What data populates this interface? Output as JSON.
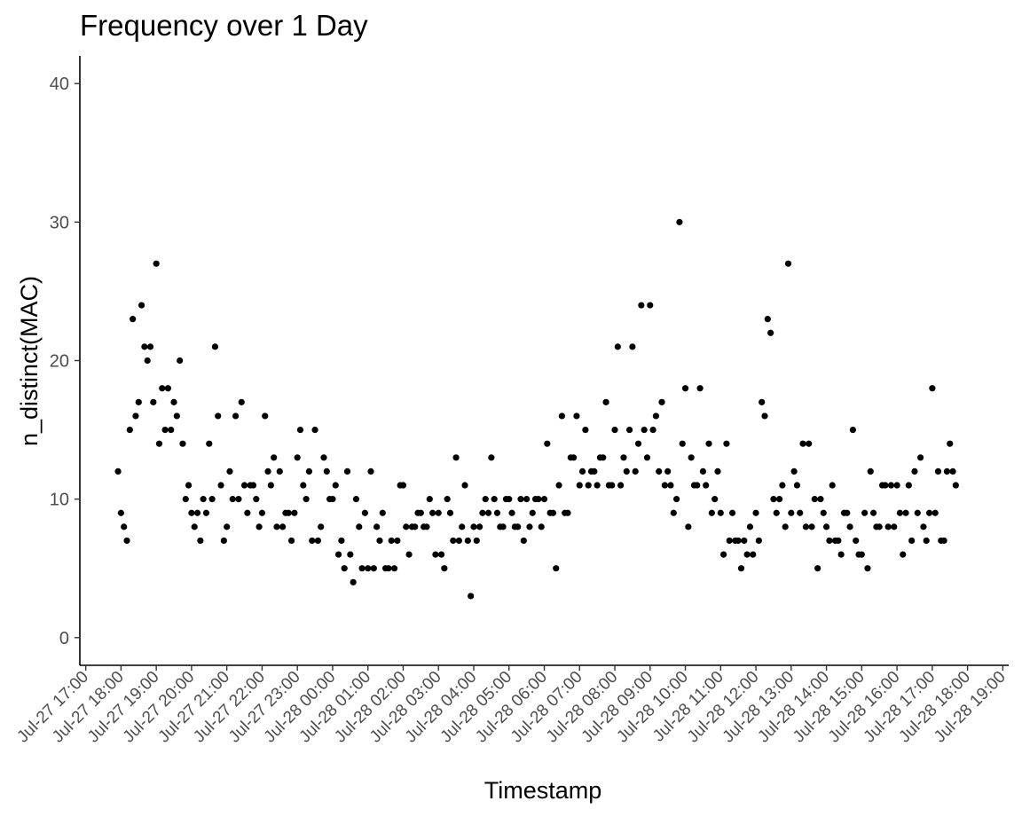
{
  "chart_data": {
    "type": "scatter",
    "title": "Frequency over 1 Day",
    "xlabel": "Timestamp",
    "ylabel": "n_distinct(MAC)",
    "ylim": [
      -2,
      42
    ],
    "xlim": [
      "2019-07-27T16:50",
      "2019-07-28T19:10"
    ],
    "y_ticks": [
      0,
      10,
      20,
      30,
      40
    ],
    "x_tick_labels": [
      "Jul-27 17:00",
      "Jul-27 18:00",
      "Jul-27 19:00",
      "Jul-27 20:00",
      "Jul-27 21:00",
      "Jul-27 22:00",
      "Jul-27 23:00",
      "Jul-28 00:00",
      "Jul-28 01:00",
      "Jul-28 02:00",
      "Jul-28 03:00",
      "Jul-28 04:00",
      "Jul-28 05:00",
      "Jul-28 06:00",
      "Jul-28 07:00",
      "Jul-28 08:00",
      "Jul-28 09:00",
      "Jul-28 10:00",
      "Jul-28 11:00",
      "Jul-28 12:00",
      "Jul-28 13:00",
      "Jul-28 14:00",
      "Jul-28 15:00",
      "Jul-28 16:00",
      "Jul-28 17:00",
      "Jul-28 18:00",
      "Jul-28 19:00"
    ],
    "grid": false,
    "point_color": "#000000",
    "points": [
      {
        "x": "2019-07-27T17:55",
        "y": 12
      },
      {
        "x": "2019-07-27T18:00",
        "y": 9
      },
      {
        "x": "2019-07-27T18:05",
        "y": 8
      },
      {
        "x": "2019-07-27T18:10",
        "y": 7
      },
      {
        "x": "2019-07-27T18:15",
        "y": 15
      },
      {
        "x": "2019-07-27T18:20",
        "y": 23
      },
      {
        "x": "2019-07-27T18:25",
        "y": 16
      },
      {
        "x": "2019-07-27T18:30",
        "y": 17
      },
      {
        "x": "2019-07-27T18:35",
        "y": 24
      },
      {
        "x": "2019-07-27T18:40",
        "y": 21
      },
      {
        "x": "2019-07-27T18:45",
        "y": 20
      },
      {
        "x": "2019-07-27T18:50",
        "y": 21
      },
      {
        "x": "2019-07-27T18:55",
        "y": 17
      },
      {
        "x": "2019-07-27T19:00",
        "y": 27
      },
      {
        "x": "2019-07-27T19:05",
        "y": 14
      },
      {
        "x": "2019-07-27T19:10",
        "y": 18
      },
      {
        "x": "2019-07-27T19:15",
        "y": 15
      },
      {
        "x": "2019-07-27T19:20",
        "y": 18
      },
      {
        "x": "2019-07-27T19:25",
        "y": 15
      },
      {
        "x": "2019-07-27T19:30",
        "y": 17
      },
      {
        "x": "2019-07-27T19:35",
        "y": 16
      },
      {
        "x": "2019-07-27T19:40",
        "y": 20
      },
      {
        "x": "2019-07-27T19:45",
        "y": 14
      },
      {
        "x": "2019-07-27T19:50",
        "y": 10
      },
      {
        "x": "2019-07-27T19:55",
        "y": 11
      },
      {
        "x": "2019-07-27T20:00",
        "y": 9
      },
      {
        "x": "2019-07-27T20:05",
        "y": 8
      },
      {
        "x": "2019-07-27T20:10",
        "y": 9
      },
      {
        "x": "2019-07-27T20:15",
        "y": 7
      },
      {
        "x": "2019-07-27T20:20",
        "y": 10
      },
      {
        "x": "2019-07-27T20:25",
        "y": 9
      },
      {
        "x": "2019-07-27T20:30",
        "y": 14
      },
      {
        "x": "2019-07-27T20:35",
        "y": 10
      },
      {
        "x": "2019-07-27T20:40",
        "y": 21
      },
      {
        "x": "2019-07-27T20:45",
        "y": 16
      },
      {
        "x": "2019-07-27T20:50",
        "y": 11
      },
      {
        "x": "2019-07-27T20:55",
        "y": 7
      },
      {
        "x": "2019-07-27T21:00",
        "y": 8
      },
      {
        "x": "2019-07-27T21:05",
        "y": 12
      },
      {
        "x": "2019-07-27T21:10",
        "y": 10
      },
      {
        "x": "2019-07-27T21:15",
        "y": 16
      },
      {
        "x": "2019-07-27T21:20",
        "y": 10
      },
      {
        "x": "2019-07-27T21:25",
        "y": 17
      },
      {
        "x": "2019-07-27T21:30",
        "y": 11
      },
      {
        "x": "2019-07-27T21:35",
        "y": 9
      },
      {
        "x": "2019-07-27T21:40",
        "y": 11
      },
      {
        "x": "2019-07-27T21:45",
        "y": 11
      },
      {
        "x": "2019-07-27T21:50",
        "y": 10
      },
      {
        "x": "2019-07-27T21:55",
        "y": 8
      },
      {
        "x": "2019-07-27T22:00",
        "y": 9
      },
      {
        "x": "2019-07-27T22:05",
        "y": 16
      },
      {
        "x": "2019-07-27T22:10",
        "y": 12
      },
      {
        "x": "2019-07-27T22:15",
        "y": 11
      },
      {
        "x": "2019-07-27T22:20",
        "y": 13
      },
      {
        "x": "2019-07-27T22:25",
        "y": 8
      },
      {
        "x": "2019-07-27T22:30",
        "y": 12
      },
      {
        "x": "2019-07-27T22:35",
        "y": 8
      },
      {
        "x": "2019-07-27T22:40",
        "y": 9
      },
      {
        "x": "2019-07-27T22:45",
        "y": 9
      },
      {
        "x": "2019-07-27T22:50",
        "y": 7
      },
      {
        "x": "2019-07-27T22:55",
        "y": 9
      },
      {
        "x": "2019-07-27T23:00",
        "y": 13
      },
      {
        "x": "2019-07-27T23:05",
        "y": 15
      },
      {
        "x": "2019-07-27T23:10",
        "y": 11
      },
      {
        "x": "2019-07-27T23:15",
        "y": 10
      },
      {
        "x": "2019-07-27T23:20",
        "y": 12
      },
      {
        "x": "2019-07-27T23:25",
        "y": 7
      },
      {
        "x": "2019-07-27T23:30",
        "y": 15
      },
      {
        "x": "2019-07-27T23:35",
        "y": 7
      },
      {
        "x": "2019-07-27T23:40",
        "y": 8
      },
      {
        "x": "2019-07-27T23:45",
        "y": 13
      },
      {
        "x": "2019-07-27T23:50",
        "y": 12
      },
      {
        "x": "2019-07-27T23:55",
        "y": 10
      },
      {
        "x": "2019-07-28T00:00",
        "y": 10
      },
      {
        "x": "2019-07-28T00:05",
        "y": 11
      },
      {
        "x": "2019-07-28T00:10",
        "y": 6
      },
      {
        "x": "2019-07-28T00:15",
        "y": 7
      },
      {
        "x": "2019-07-28T00:20",
        "y": 5
      },
      {
        "x": "2019-07-28T00:25",
        "y": 12
      },
      {
        "x": "2019-07-28T00:30",
        "y": 6
      },
      {
        "x": "2019-07-28T00:35",
        "y": 4
      },
      {
        "x": "2019-07-28T00:40",
        "y": 10
      },
      {
        "x": "2019-07-28T00:45",
        "y": 8
      },
      {
        "x": "2019-07-28T00:50",
        "y": 5
      },
      {
        "x": "2019-07-28T00:55",
        "y": 9
      },
      {
        "x": "2019-07-28T01:00",
        "y": 5
      },
      {
        "x": "2019-07-28T01:05",
        "y": 12
      },
      {
        "x": "2019-07-28T01:10",
        "y": 5
      },
      {
        "x": "2019-07-28T01:15",
        "y": 8
      },
      {
        "x": "2019-07-28T01:20",
        "y": 7
      },
      {
        "x": "2019-07-28T01:25",
        "y": 9
      },
      {
        "x": "2019-07-28T01:30",
        "y": 5
      },
      {
        "x": "2019-07-28T01:35",
        "y": 5
      },
      {
        "x": "2019-07-28T01:40",
        "y": 7
      },
      {
        "x": "2019-07-28T01:45",
        "y": 5
      },
      {
        "x": "2019-07-28T01:50",
        "y": 7
      },
      {
        "x": "2019-07-28T01:55",
        "y": 11
      },
      {
        "x": "2019-07-28T02:00",
        "y": 11
      },
      {
        "x": "2019-07-28T02:05",
        "y": 8
      },
      {
        "x": "2019-07-28T02:10",
        "y": 6
      },
      {
        "x": "2019-07-28T02:15",
        "y": 8
      },
      {
        "x": "2019-07-28T02:20",
        "y": 8
      },
      {
        "x": "2019-07-28T02:25",
        "y": 9
      },
      {
        "x": "2019-07-28T02:30",
        "y": 9
      },
      {
        "x": "2019-07-28T02:35",
        "y": 8
      },
      {
        "x": "2019-07-28T02:40",
        "y": 8
      },
      {
        "x": "2019-07-28T02:45",
        "y": 10
      },
      {
        "x": "2019-07-28T02:50",
        "y": 9
      },
      {
        "x": "2019-07-28T02:55",
        "y": 6
      },
      {
        "x": "2019-07-28T03:00",
        "y": 9
      },
      {
        "x": "2019-07-28T03:05",
        "y": 6
      },
      {
        "x": "2019-07-28T03:10",
        "y": 5
      },
      {
        "x": "2019-07-28T03:15",
        "y": 10
      },
      {
        "x": "2019-07-28T03:20",
        "y": 9
      },
      {
        "x": "2019-07-28T03:25",
        "y": 7
      },
      {
        "x": "2019-07-28T03:30",
        "y": 13
      },
      {
        "x": "2019-07-28T03:35",
        "y": 7
      },
      {
        "x": "2019-07-28T03:40",
        "y": 8
      },
      {
        "x": "2019-07-28T03:45",
        "y": 11
      },
      {
        "x": "2019-07-28T03:50",
        "y": 7
      },
      {
        "x": "2019-07-28T03:55",
        "y": 3
      },
      {
        "x": "2019-07-28T04:00",
        "y": 8
      },
      {
        "x": "2019-07-28T04:05",
        "y": 7
      },
      {
        "x": "2019-07-28T04:10",
        "y": 8
      },
      {
        "x": "2019-07-28T04:15",
        "y": 9
      },
      {
        "x": "2019-07-28T04:20",
        "y": 10
      },
      {
        "x": "2019-07-28T04:25",
        "y": 9
      },
      {
        "x": "2019-07-28T04:30",
        "y": 13
      },
      {
        "x": "2019-07-28T04:35",
        "y": 10
      },
      {
        "x": "2019-07-28T04:40",
        "y": 9
      },
      {
        "x": "2019-07-28T04:45",
        "y": 8
      },
      {
        "x": "2019-07-28T04:50",
        "y": 8
      },
      {
        "x": "2019-07-28T04:55",
        "y": 10
      },
      {
        "x": "2019-07-28T05:00",
        "y": 10
      },
      {
        "x": "2019-07-28T05:05",
        "y": 9
      },
      {
        "x": "2019-07-28T05:10",
        "y": 8
      },
      {
        "x": "2019-07-28T05:15",
        "y": 8
      },
      {
        "x": "2019-07-28T05:20",
        "y": 10
      },
      {
        "x": "2019-07-28T05:25",
        "y": 7
      },
      {
        "x": "2019-07-28T05:30",
        "y": 10
      },
      {
        "x": "2019-07-28T05:35",
        "y": 8
      },
      {
        "x": "2019-07-28T05:40",
        "y": 9
      },
      {
        "x": "2019-07-28T05:45",
        "y": 10
      },
      {
        "x": "2019-07-28T05:50",
        "y": 10
      },
      {
        "x": "2019-07-28T05:55",
        "y": 8
      },
      {
        "x": "2019-07-28T06:00",
        "y": 10
      },
      {
        "x": "2019-07-28T06:05",
        "y": 14
      },
      {
        "x": "2019-07-28T06:10",
        "y": 9
      },
      {
        "x": "2019-07-28T06:15",
        "y": 9
      },
      {
        "x": "2019-07-28T06:20",
        "y": 5
      },
      {
        "x": "2019-07-28T06:25",
        "y": 11
      },
      {
        "x": "2019-07-28T06:30",
        "y": 16
      },
      {
        "x": "2019-07-28T06:35",
        "y": 9
      },
      {
        "x": "2019-07-28T06:40",
        "y": 9
      },
      {
        "x": "2019-07-28T06:45",
        "y": 13
      },
      {
        "x": "2019-07-28T06:50",
        "y": 13
      },
      {
        "x": "2019-07-28T06:55",
        "y": 16
      },
      {
        "x": "2019-07-28T07:00",
        "y": 11
      },
      {
        "x": "2019-07-28T07:05",
        "y": 12
      },
      {
        "x": "2019-07-28T07:10",
        "y": 15
      },
      {
        "x": "2019-07-28T07:15",
        "y": 11
      },
      {
        "x": "2019-07-28T07:20",
        "y": 12
      },
      {
        "x": "2019-07-28T07:25",
        "y": 12
      },
      {
        "x": "2019-07-28T07:30",
        "y": 11
      },
      {
        "x": "2019-07-28T07:35",
        "y": 13
      },
      {
        "x": "2019-07-28T07:40",
        "y": 13
      },
      {
        "x": "2019-07-28T07:45",
        "y": 17
      },
      {
        "x": "2019-07-28T07:50",
        "y": 11
      },
      {
        "x": "2019-07-28T07:55",
        "y": 11
      },
      {
        "x": "2019-07-28T08:00",
        "y": 15
      },
      {
        "x": "2019-07-28T08:05",
        "y": 21
      },
      {
        "x": "2019-07-28T08:10",
        "y": 11
      },
      {
        "x": "2019-07-28T08:15",
        "y": 13
      },
      {
        "x": "2019-07-28T08:20",
        "y": 12
      },
      {
        "x": "2019-07-28T08:25",
        "y": 15
      },
      {
        "x": "2019-07-28T08:30",
        "y": 21
      },
      {
        "x": "2019-07-28T08:35",
        "y": 12
      },
      {
        "x": "2019-07-28T08:40",
        "y": 14
      },
      {
        "x": "2019-07-28T08:45",
        "y": 24
      },
      {
        "x": "2019-07-28T08:50",
        "y": 15
      },
      {
        "x": "2019-07-28T08:55",
        "y": 13
      },
      {
        "x": "2019-07-28T09:00",
        "y": 24
      },
      {
        "x": "2019-07-28T09:05",
        "y": 15
      },
      {
        "x": "2019-07-28T09:10",
        "y": 16
      },
      {
        "x": "2019-07-28T09:15",
        "y": 12
      },
      {
        "x": "2019-07-28T09:20",
        "y": 17
      },
      {
        "x": "2019-07-28T09:25",
        "y": 11
      },
      {
        "x": "2019-07-28T09:30",
        "y": 12
      },
      {
        "x": "2019-07-28T09:35",
        "y": 11
      },
      {
        "x": "2019-07-28T09:40",
        "y": 9
      },
      {
        "x": "2019-07-28T09:45",
        "y": 10
      },
      {
        "x": "2019-07-28T09:50",
        "y": 30
      },
      {
        "x": "2019-07-28T09:55",
        "y": 14
      },
      {
        "x": "2019-07-28T10:00",
        "y": 18
      },
      {
        "x": "2019-07-28T10:05",
        "y": 8
      },
      {
        "x": "2019-07-28T10:10",
        "y": 13
      },
      {
        "x": "2019-07-28T10:15",
        "y": 11
      },
      {
        "x": "2019-07-28T10:20",
        "y": 11
      },
      {
        "x": "2019-07-28T10:25",
        "y": 18
      },
      {
        "x": "2019-07-28T10:30",
        "y": 12
      },
      {
        "x": "2019-07-28T10:35",
        "y": 11
      },
      {
        "x": "2019-07-28T10:40",
        "y": 14
      },
      {
        "x": "2019-07-28T10:45",
        "y": 9
      },
      {
        "x": "2019-07-28T10:50",
        "y": 10
      },
      {
        "x": "2019-07-28T10:55",
        "y": 12
      },
      {
        "x": "2019-07-28T11:00",
        "y": 9
      },
      {
        "x": "2019-07-28T11:05",
        "y": 6
      },
      {
        "x": "2019-07-28T11:10",
        "y": 14
      },
      {
        "x": "2019-07-28T11:15",
        "y": 7
      },
      {
        "x": "2019-07-28T11:20",
        "y": 9
      },
      {
        "x": "2019-07-28T11:25",
        "y": 7
      },
      {
        "x": "2019-07-28T11:30",
        "y": 7
      },
      {
        "x": "2019-07-28T11:35",
        "y": 5
      },
      {
        "x": "2019-07-28T11:40",
        "y": 7
      },
      {
        "x": "2019-07-28T11:45",
        "y": 6
      },
      {
        "x": "2019-07-28T11:50",
        "y": 8
      },
      {
        "x": "2019-07-28T11:55",
        "y": 6
      },
      {
        "x": "2019-07-28T12:00",
        "y": 9
      },
      {
        "x": "2019-07-28T12:05",
        "y": 7
      },
      {
        "x": "2019-07-28T12:10",
        "y": 17
      },
      {
        "x": "2019-07-28T12:15",
        "y": 16
      },
      {
        "x": "2019-07-28T12:20",
        "y": 23
      },
      {
        "x": "2019-07-28T12:25",
        "y": 22
      },
      {
        "x": "2019-07-28T12:30",
        "y": 10
      },
      {
        "x": "2019-07-28T12:35",
        "y": 9
      },
      {
        "x": "2019-07-28T12:40",
        "y": 10
      },
      {
        "x": "2019-07-28T12:45",
        "y": 11
      },
      {
        "x": "2019-07-28T12:50",
        "y": 8
      },
      {
        "x": "2019-07-28T12:55",
        "y": 27
      },
      {
        "x": "2019-07-28T13:00",
        "y": 9
      },
      {
        "x": "2019-07-28T13:05",
        "y": 12
      },
      {
        "x": "2019-07-28T13:10",
        "y": 11
      },
      {
        "x": "2019-07-28T13:15",
        "y": 9
      },
      {
        "x": "2019-07-28T13:20",
        "y": 14
      },
      {
        "x": "2019-07-28T13:25",
        "y": 8
      },
      {
        "x": "2019-07-28T13:30",
        "y": 14
      },
      {
        "x": "2019-07-28T13:35",
        "y": 8
      },
      {
        "x": "2019-07-28T13:40",
        "y": 10
      },
      {
        "x": "2019-07-28T13:45",
        "y": 5
      },
      {
        "x": "2019-07-28T13:50",
        "y": 10
      },
      {
        "x": "2019-07-28T13:55",
        "y": 9
      },
      {
        "x": "2019-07-28T14:00",
        "y": 8
      },
      {
        "x": "2019-07-28T14:05",
        "y": 7
      },
      {
        "x": "2019-07-28T14:10",
        "y": 11
      },
      {
        "x": "2019-07-28T14:15",
        "y": 7
      },
      {
        "x": "2019-07-28T14:20",
        "y": 7
      },
      {
        "x": "2019-07-28T14:25",
        "y": 6
      },
      {
        "x": "2019-07-28T14:30",
        "y": 9
      },
      {
        "x": "2019-07-28T14:35",
        "y": 9
      },
      {
        "x": "2019-07-28T14:40",
        "y": 8
      },
      {
        "x": "2019-07-28T14:45",
        "y": 15
      },
      {
        "x": "2019-07-28T14:50",
        "y": 7
      },
      {
        "x": "2019-07-28T14:55",
        "y": 6
      },
      {
        "x": "2019-07-28T15:00",
        "y": 6
      },
      {
        "x": "2019-07-28T15:05",
        "y": 9
      },
      {
        "x": "2019-07-28T15:10",
        "y": 5
      },
      {
        "x": "2019-07-28T15:15",
        "y": 12
      },
      {
        "x": "2019-07-28T15:20",
        "y": 9
      },
      {
        "x": "2019-07-28T15:25",
        "y": 8
      },
      {
        "x": "2019-07-28T15:30",
        "y": 8
      },
      {
        "x": "2019-07-28T15:35",
        "y": 11
      },
      {
        "x": "2019-07-28T15:40",
        "y": 11
      },
      {
        "x": "2019-07-28T15:45",
        "y": 8
      },
      {
        "x": "2019-07-28T15:50",
        "y": 11
      },
      {
        "x": "2019-07-28T15:55",
        "y": 8
      },
      {
        "x": "2019-07-28T16:00",
        "y": 11
      },
      {
        "x": "2019-07-28T16:05",
        "y": 9
      },
      {
        "x": "2019-07-28T16:10",
        "y": 6
      },
      {
        "x": "2019-07-28T16:15",
        "y": 9
      },
      {
        "x": "2019-07-28T16:20",
        "y": 11
      },
      {
        "x": "2019-07-28T16:25",
        "y": 7
      },
      {
        "x": "2019-07-28T16:30",
        "y": 12
      },
      {
        "x": "2019-07-28T16:35",
        "y": 9
      },
      {
        "x": "2019-07-28T16:40",
        "y": 13
      },
      {
        "x": "2019-07-28T16:45",
        "y": 8
      },
      {
        "x": "2019-07-28T16:50",
        "y": 7
      },
      {
        "x": "2019-07-28T16:55",
        "y": 9
      },
      {
        "x": "2019-07-28T17:00",
        "y": 18
      },
      {
        "x": "2019-07-28T17:05",
        "y": 9
      },
      {
        "x": "2019-07-28T17:10",
        "y": 12
      },
      {
        "x": "2019-07-28T17:15",
        "y": 7
      },
      {
        "x": "2019-07-28T17:20",
        "y": 7
      },
      {
        "x": "2019-07-28T17:25",
        "y": 12
      },
      {
        "x": "2019-07-28T17:30",
        "y": 14
      },
      {
        "x": "2019-07-28T17:35",
        "y": 12
      },
      {
        "x": "2019-07-28T17:40",
        "y": 11
      }
    ]
  }
}
